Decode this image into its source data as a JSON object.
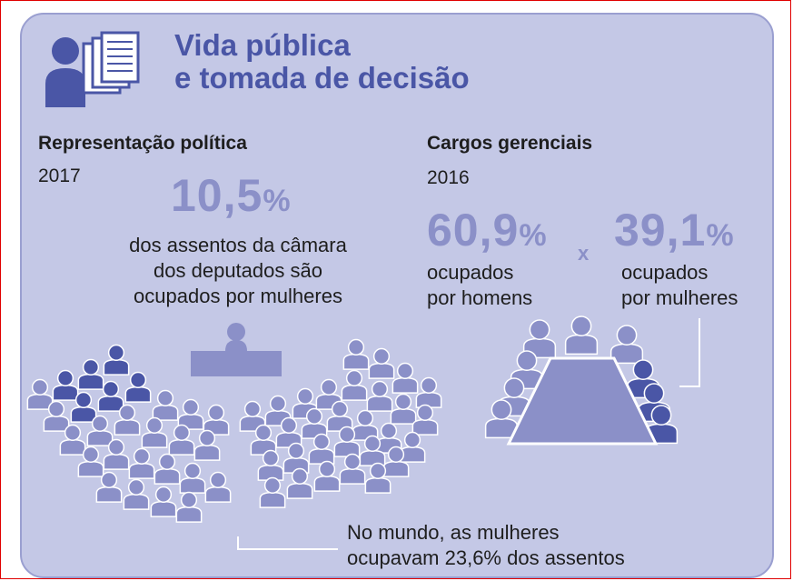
{
  "header": {
    "title_line1": "Vida pública",
    "title_line2": "e tomada de decisão",
    "icon": "person-documents-icon"
  },
  "left": {
    "heading": "Representação política",
    "year": "2017",
    "value": "10,5",
    "unit": "%",
    "desc_line1": "dos assentos da câmara",
    "desc_line2": "dos deputados são",
    "desc_line3": "ocupados por mulheres",
    "illustration": "parliament-seats-icon"
  },
  "right": {
    "heading": "Cargos gerenciais",
    "year": "2016",
    "men_value": "60,9",
    "women_value": "39,1",
    "unit": "%",
    "separator": "x",
    "men_line1": "ocupados",
    "men_line2": "por homens",
    "women_line1": "ocupados",
    "women_line2": "por mulheres",
    "illustration": "meeting-table-icon"
  },
  "footer": {
    "line1": "No mundo, as mulheres",
    "line2": "ocupavam 23,6% dos assentos"
  },
  "colors": {
    "panel": "#c4c8e6",
    "light_figure": "#8b90c8",
    "dark_figure": "#4a56a6",
    "title": "#4a56a6"
  }
}
